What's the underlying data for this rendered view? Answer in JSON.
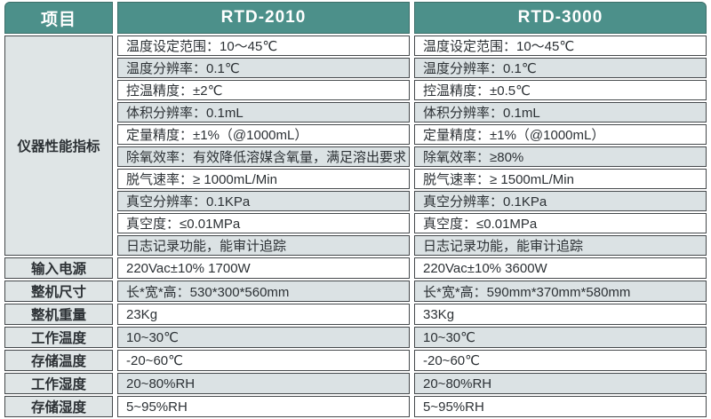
{
  "colors": {
    "header_teal": "#4c908a",
    "stripe_gray": "#dbe2e4",
    "label_column_gray": "#dfe5e6",
    "border_dark": "#45494c",
    "header_text": "#ffffff",
    "body_text": "#2c3135"
  },
  "table": {
    "header": {
      "item_col": "项目",
      "col1": "RTD-2010",
      "col2": "RTD-3000"
    },
    "performance_group_label": "仪器性能指标",
    "performance_rows": [
      {
        "name": "温度设定范围",
        "rtd2010": "温度设定范围：10～45℃",
        "rtd3000": "温度设定范围：10～45℃"
      },
      {
        "name": "温度分辨率",
        "rtd2010": "温度分辨率：0.1℃",
        "rtd3000": "温度分辨率：0.1℃"
      },
      {
        "name": "控温精度",
        "rtd2010": "控温精度：±2℃",
        "rtd3000": "控温精度：±0.5℃"
      },
      {
        "name": "体积分辨率",
        "rtd2010": "体积分辨率：0.1mL",
        "rtd3000": "体积分辨率：0.1mL"
      },
      {
        "name": "定量精度",
        "rtd2010": "定量精度：±1%（@1000mL）",
        "rtd3000": "定量精度：±1%（@1000mL）"
      },
      {
        "name": "除氧效率",
        "rtd2010": "除氧效率：有效降低溶媒含氧量，满足溶出要求",
        "rtd3000": "除氧效率：≥80%"
      },
      {
        "name": "脱气速率",
        "rtd2010": "脱气速率：≥ 1000mL/Min",
        "rtd3000": "脱气速率：≥ 1500mL/Min"
      },
      {
        "name": "真空分辨率",
        "rtd2010": "真空分辨率：0.1KPa",
        "rtd3000": "真空分辨率：0.1KPa"
      },
      {
        "name": "真空度",
        "rtd2010": "真空度：≤0.01MPa",
        "rtd3000": "真空度：≤0.01MPa"
      },
      {
        "name": "日志记录功能",
        "rtd2010": "日志记录功能，能审计追踪",
        "rtd3000": "日志记录功能，能审计追踪"
      }
    ],
    "bottom_rows": [
      {
        "label": "输入电源",
        "rtd2010": "220Vac±10% 1700W",
        "rtd3000": "220Vac±10% 3600W"
      },
      {
        "label": "整机尺寸",
        "rtd2010": "长*宽*高：530*300*560mm",
        "rtd3000": "长*宽*高：590mm*370mm*580mm"
      },
      {
        "label": "整机重量",
        "rtd2010": "23Kg",
        "rtd3000": "33Kg"
      },
      {
        "label": "工作温度",
        "rtd2010": "10~30℃",
        "rtd3000": "10~30℃"
      },
      {
        "label": "存储温度",
        "rtd2010": "-20~60℃",
        "rtd3000": "-20~60℃"
      },
      {
        "label": "工作湿度",
        "rtd2010": "20~80%RH",
        "rtd3000": "20~80%RH"
      },
      {
        "label": "存储湿度",
        "rtd2010": "5~95%RH",
        "rtd3000": "5~95%RH"
      }
    ]
  }
}
